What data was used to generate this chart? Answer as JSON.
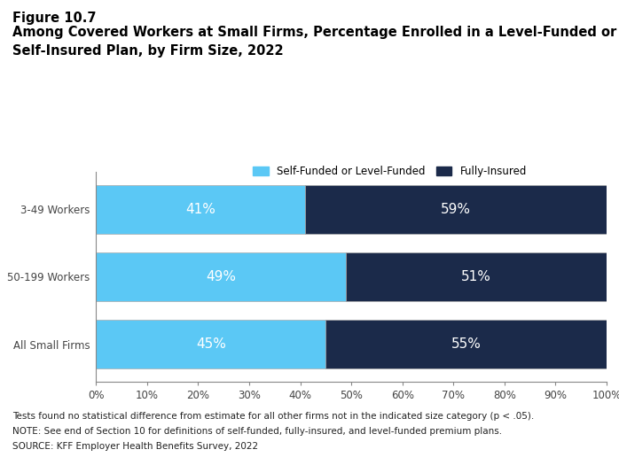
{
  "figure_label": "Figure 10.7",
  "title_line1": "Among Covered Workers at Small Firms, Percentage Enrolled in a Level-Funded or",
  "title_line2": "Self-Insured Plan, by Firm Size, 2022",
  "categories": [
    "3-49 Workers",
    "50-199 Workers",
    "All Small Firms"
  ],
  "self_funded_values": [
    41,
    49,
    45
  ],
  "fully_insured_values": [
    59,
    51,
    55
  ],
  "color_self_funded": "#5BC8F5",
  "color_fully_insured": "#1B2A4A",
  "bar_edge_color": "#aaaaaa",
  "label_self_funded": "Self-Funded or Level-Funded",
  "label_fully_insured": "Fully-Insured",
  "footnote1": "Tests found no statistical difference from estimate for all other firms not in the indicated size category (p < .05).",
  "footnote2": "NOTE: See end of Section 10 for definitions of self-funded, fully-insured, and level-funded premium plans.",
  "footnote3": "SOURCE: KFF Employer Health Benefits Survey, 2022",
  "xlim": [
    0,
    100
  ],
  "bar_height": 0.72,
  "tick_fontsize": 8.5,
  "footnote_fontsize": 7.5,
  "title_fontsize": 10.5,
  "figure_label_fontsize": 10.5,
  "legend_fontsize": 8.5,
  "value_label_fontsize": 11,
  "ytick_fontsize": 8.5
}
